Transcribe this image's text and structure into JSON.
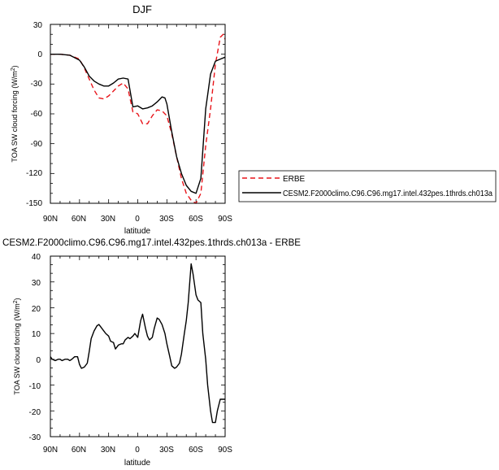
{
  "chart_data": [
    {
      "type": "line",
      "title": "DJF",
      "xlabel": "latitude",
      "ylabel": "TOA SW cloud forcing (W/m²)",
      "ylabel_parts": [
        "TOA SW cloud forcing (W/m",
        "2",
        ")"
      ],
      "xlim": [
        90,
        -90
      ],
      "ylim": [
        -150,
        30
      ],
      "xticks": [
        90,
        60,
        30,
        0,
        -30,
        -60,
        -90
      ],
      "xtick_labels": [
        "90N",
        "60N",
        "30N",
        "0",
        "30S",
        "60S",
        "90S"
      ],
      "yticks": [
        30,
        0,
        -30,
        -60,
        -90,
        -120,
        -150
      ],
      "ytick_labels": [
        "30",
        "0",
        "-30",
        "-60",
        "-90",
        "-120",
        "-150"
      ],
      "legend_position": "right",
      "series": [
        {
          "name": "ERBE",
          "color": "#e8141a",
          "dash": "dashed",
          "x": [
            90,
            80,
            70,
            60,
            55,
            50,
            45,
            40,
            35,
            30,
            25,
            20,
            15,
            10,
            5,
            0,
            -5,
            -10,
            -15,
            -20,
            -25,
            -30,
            -35,
            -40,
            -45,
            -50,
            -55,
            -60,
            -65,
            -70,
            -75,
            -80,
            -85,
            -88,
            -90
          ],
          "y": [
            0,
            0,
            -1,
            -5,
            -14,
            -25,
            -36,
            -44,
            -45,
            -42,
            -37,
            -32,
            -29,
            -35,
            -58,
            -60,
            -70,
            -70,
            -62,
            -56,
            -57,
            -62,
            -80,
            -103,
            -125,
            -140,
            -147,
            -150,
            -140,
            -92,
            -55,
            -10,
            17,
            20,
            15
          ]
        },
        {
          "name": "CESM2.F2000climo.C96.C96.mg17.intel.432pes.1thrds.ch013a",
          "color": "#000000",
          "dash": "solid",
          "x": [
            90,
            80,
            70,
            60,
            55,
            50,
            45,
            40,
            35,
            30,
            25,
            20,
            15,
            10,
            5,
            0,
            -5,
            -10,
            -15,
            -20,
            -25,
            -28,
            -30,
            -35,
            -40,
            -45,
            -50,
            -55,
            -60,
            -65,
            -70,
            -75,
            -80,
            -85,
            -90
          ],
          "y": [
            0,
            0,
            -1,
            -6,
            -13,
            -22,
            -27,
            -30,
            -32,
            -32,
            -29,
            -25,
            -24,
            -25,
            -53,
            -52,
            -55,
            -54,
            -52,
            -48,
            -43,
            -44,
            -50,
            -78,
            -103,
            -120,
            -132,
            -138,
            -140,
            -125,
            -55,
            -20,
            -7,
            -5,
            -3
          ]
        }
      ]
    },
    {
      "type": "line",
      "title": "CESM2.F2000climo.C96.C96.mg17.intel.432pes.1thrds.ch013a - ERBE",
      "xlabel": "latitude",
      "ylabel": "TOA SW cloud forcing (W/m²)",
      "ylabel_parts": [
        "TOA SW cloud forcing (W/m",
        "2",
        ")"
      ],
      "xlim": [
        90,
        -90
      ],
      "ylim": [
        -30,
        40
      ],
      "xticks": [
        90,
        60,
        30,
        0,
        -30,
        -60,
        -90
      ],
      "xtick_labels": [
        "90N",
        "60N",
        "30N",
        "0",
        "30S",
        "60S",
        "90S"
      ],
      "yticks": [
        40,
        30,
        20,
        10,
        0,
        -10,
        -20,
        -30
      ],
      "ytick_labels": [
        "40",
        "30",
        "20",
        "10",
        "0",
        "-10",
        "-20",
        "-30"
      ],
      "series": [
        {
          "color": "#000000",
          "dash": "solid",
          "x": [
            90,
            88,
            85,
            82,
            80,
            78,
            75,
            72,
            70,
            68,
            65,
            62,
            60,
            58,
            55,
            52,
            50,
            48,
            45,
            42,
            40,
            38,
            35,
            33,
            30,
            28,
            25,
            23,
            20,
            17,
            15,
            13,
            10,
            8,
            5,
            3,
            0,
            -3,
            -5,
            -8,
            -10,
            -12,
            -15,
            -17,
            -20,
            -22,
            -25,
            -28,
            -30,
            -33,
            -35,
            -38,
            -40,
            -43,
            -45,
            -48,
            -50,
            -52,
            -55,
            -57,
            -60,
            -62,
            -65,
            -67,
            -70,
            -72,
            -75,
            -77,
            -80,
            -82,
            -85,
            -88,
            -90
          ],
          "y": [
            1,
            0,
            -0.5,
            0,
            0,
            -0.5,
            0,
            0,
            -0.5,
            0,
            1,
            1,
            -2,
            -3.5,
            -3,
            -1.5,
            3,
            8,
            11,
            13,
            13.5,
            12.5,
            11,
            10,
            9,
            7,
            6.5,
            4,
            5.5,
            6,
            6,
            7.5,
            8.5,
            8,
            9,
            10,
            8.5,
            15,
            17.5,
            12,
            9,
            7.5,
            8.5,
            12,
            16,
            15.5,
            13.5,
            10,
            6,
            1,
            -2.5,
            -3.5,
            -3,
            -1.5,
            2,
            10,
            15,
            22,
            37,
            33,
            25,
            23,
            22,
            10,
            0,
            -10,
            -20,
            -24.5,
            -24.5,
            -20,
            -15.5,
            -15.5,
            -15.5
          ]
        }
      ]
    }
  ]
}
